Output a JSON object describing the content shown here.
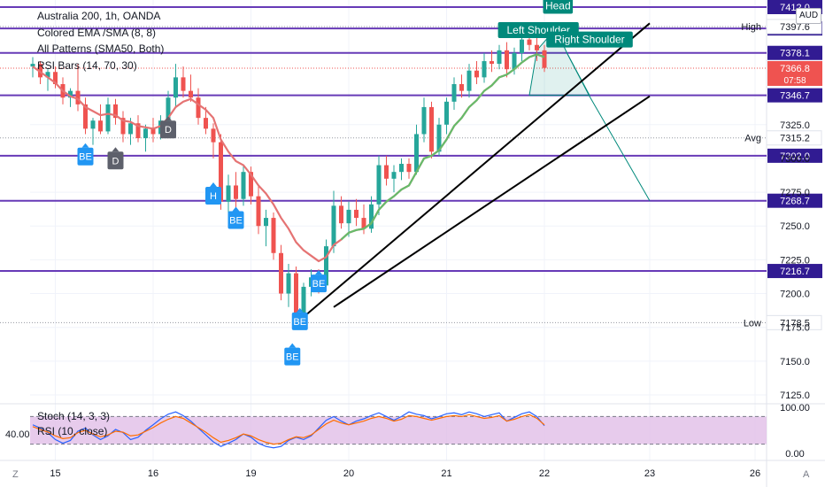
{
  "header": {
    "currency": "AUD"
  },
  "legend": {
    "lines": [
      "Australia 200, 1h, OANDA",
      "Colored EMA /SMA (8, 8)",
      "All Patterns (SMA50, Both)",
      "RSI Bars (14, 70, 30)"
    ]
  },
  "oscillator": {
    "legend": [
      "Stoch (14, 3, 3)",
      "RSI (10, close)"
    ],
    "left_value": "40.00",
    "axis_labels": [
      "100.00",
      "0.00"
    ]
  },
  "footer": {
    "left": "Z",
    "right": "A"
  },
  "colors": {
    "bull": "#26a69a",
    "bear": "#ef5350",
    "ema": "#66bb6a",
    "ema_down": "#e57373",
    "level": "#673ab7",
    "trend": "#000000",
    "pattern": "#00897b",
    "badge_blue": "#2196f3",
    "badge_gray": "#5d606b",
    "rsi_fill": "#e1bee7"
  },
  "chart_data": {
    "type": "candlestick",
    "title": "Australia 200, 1h, OANDA",
    "ylim": [
      7125,
      7412
    ],
    "y_ticks": [
      "7125.0",
      "7150.0",
      "7175.0",
      "7200.0",
      "7225.0",
      "7250.0",
      "7275.0",
      "7300.0",
      "7325.0"
    ],
    "x_ticks": [
      {
        "label": "15",
        "index": 3
      },
      {
        "label": "16",
        "index": 16
      },
      {
        "label": "19",
        "index": 29
      },
      {
        "label": "20",
        "index": 42
      },
      {
        "label": "21",
        "index": 55
      },
      {
        "label": "22",
        "index": 68
      },
      {
        "label": "23",
        "index": 82
      },
      {
        "label": "26",
        "index": 96
      }
    ],
    "candles": [
      [
        7368,
        7375,
        7360,
        7370
      ],
      [
        7370,
        7372,
        7355,
        7360
      ],
      [
        7360,
        7366,
        7350,
        7364
      ],
      [
        7364,
        7368,
        7352,
        7355
      ],
      [
        7355,
        7360,
        7340,
        7345
      ],
      [
        7345,
        7352,
        7338,
        7350
      ],
      [
        7350,
        7370,
        7335,
        7340
      ],
      [
        7340,
        7345,
        7318,
        7322
      ],
      [
        7322,
        7330,
        7310,
        7328
      ],
      [
        7328,
        7340,
        7318,
        7320
      ],
      [
        7320,
        7345,
        7318,
        7340
      ],
      [
        7340,
        7344,
        7325,
        7330
      ],
      [
        7330,
        7335,
        7312,
        7318
      ],
      [
        7318,
        7330,
        7310,
        7326
      ],
      [
        7326,
        7332,
        7312,
        7315
      ],
      [
        7315,
        7325,
        7305,
        7322
      ],
      [
        7322,
        7330,
        7312,
        7318
      ],
      [
        7318,
        7332,
        7314,
        7328
      ],
      [
        7328,
        7350,
        7322,
        7345
      ],
      [
        7345,
        7370,
        7338,
        7360
      ],
      [
        7360,
        7368,
        7345,
        7350
      ],
      [
        7350,
        7362,
        7342,
        7345
      ],
      [
        7345,
        7352,
        7325,
        7330
      ],
      [
        7330,
        7338,
        7318,
        7322
      ],
      [
        7322,
        7326,
        7300,
        7312
      ],
      [
        7312,
        7318,
        7262,
        7268
      ],
      [
        7268,
        7288,
        7255,
        7280
      ],
      [
        7280,
        7290,
        7262,
        7270
      ],
      [
        7270,
        7295,
        7265,
        7290
      ],
      [
        7290,
        7294,
        7266,
        7272
      ],
      [
        7272,
        7280,
        7244,
        7250
      ],
      [
        7250,
        7262,
        7235,
        7256
      ],
      [
        7256,
        7260,
        7225,
        7230
      ],
      [
        7230,
        7236,
        7195,
        7200
      ],
      [
        7200,
        7222,
        7190,
        7215
      ],
      [
        7215,
        7220,
        7180,
        7184
      ],
      [
        7184,
        7208,
        7176,
        7205
      ],
      [
        7205,
        7218,
        7198,
        7212
      ],
      [
        7212,
        7218,
        7200,
        7206
      ],
      [
        7206,
        7240,
        7204,
        7235
      ],
      [
        7235,
        7276,
        7230,
        7265
      ],
      [
        7265,
        7272,
        7248,
        7252
      ],
      [
        7252,
        7268,
        7242,
        7262
      ],
      [
        7262,
        7270,
        7250,
        7256
      ],
      [
        7256,
        7266,
        7244,
        7248
      ],
      [
        7248,
        7272,
        7245,
        7266
      ],
      [
        7266,
        7302,
        7258,
        7295
      ],
      [
        7295,
        7302,
        7280,
        7285
      ],
      [
        7285,
        7295,
        7275,
        7290
      ],
      [
        7290,
        7300,
        7284,
        7296
      ],
      [
        7296,
        7300,
        7285,
        7290
      ],
      [
        7290,
        7325,
        7288,
        7318
      ],
      [
        7318,
        7345,
        7312,
        7338
      ],
      [
        7338,
        7342,
        7300,
        7305
      ],
      [
        7305,
        7330,
        7302,
        7325
      ],
      [
        7325,
        7345,
        7318,
        7342
      ],
      [
        7342,
        7360,
        7336,
        7355
      ],
      [
        7355,
        7362,
        7345,
        7350
      ],
      [
        7350,
        7370,
        7345,
        7365
      ],
      [
        7365,
        7372,
        7355,
        7360
      ],
      [
        7360,
        7378,
        7356,
        7372
      ],
      [
        7372,
        7380,
        7364,
        7370
      ],
      [
        7370,
        7384,
        7366,
        7380
      ],
      [
        7380,
        7386,
        7360,
        7366
      ],
      [
        7366,
        7382,
        7362,
        7378
      ],
      [
        7378,
        7392,
        7372,
        7388
      ],
      [
        7388,
        7397,
        7380,
        7384
      ],
      [
        7384,
        7390,
        7372,
        7380
      ],
      [
        7380,
        7384,
        7364,
        7367
      ]
    ],
    "ema": [
      7368,
      7364,
      7360,
      7356,
      7350,
      7346,
      7344,
      7338,
      7335,
      7332,
      7333,
      7332,
      7328,
      7327,
      7324,
      7323,
      7322,
      7324,
      7330,
      7338,
      7342,
      7344,
      7340,
      7336,
      7330,
      7314,
      7305,
      7298,
      7295,
      7288,
      7280,
      7274,
      7266,
      7256,
      7248,
      7238,
      7232,
      7228,
      7224,
      7227,
      7236,
      7240,
      7245,
      7247,
      7248,
      7252,
      7262,
      7268,
      7272,
      7277,
      7280,
      7290,
      7300,
      7302,
      7306,
      7314,
      7324,
      7330,
      7338,
      7343,
      7350,
      7354,
      7360,
      7362,
      7366,
      7371,
      7375,
      7377,
      7375
    ],
    "levels": [
      {
        "label": "7412.0",
        "value": 7412.0
      },
      {
        "label": "7396.2",
        "value": 7396.2
      },
      {
        "label": "7378.1",
        "value": 7378.1
      },
      {
        "label": "7346.7",
        "value": 7346.7
      },
      {
        "label": "7302.0",
        "value": 7302.0
      },
      {
        "label": "7268.7",
        "value": 7268.7
      },
      {
        "label": "7216.7",
        "value": 7216.7
      }
    ],
    "current": {
      "label": "7366.8",
      "value": 7366.8,
      "countdown": "07:58"
    },
    "stats": [
      {
        "name": "High",
        "label": "7397.6",
        "value": 7397.6
      },
      {
        "name": "Avg",
        "label": "7315.2",
        "value": 7315.2
      },
      {
        "name": "Low",
        "label": "7178.5",
        "value": 7178.5
      }
    ],
    "trendlines": [
      {
        "from": [
          35,
          7178
        ],
        "to": [
          82,
          7400
        ]
      },
      {
        "from": [
          40,
          7190
        ],
        "to": [
          82,
          7346
        ]
      }
    ],
    "pattern": {
      "labels": [
        {
          "text": "Left Shoulder",
          "index": 67.2,
          "value": 7395
        },
        {
          "text": "Head",
          "index": 69.8,
          "value": 7413
        },
        {
          "text": "Right Shoulder",
          "index": 74,
          "value": 7388
        }
      ],
      "projection": [
        [
          71,
          7378
        ],
        [
          74,
          7346
        ],
        [
          82,
          7268.7
        ]
      ]
    },
    "signals": [
      {
        "text": "BE",
        "index": 7,
        "value": 7308,
        "kind": "bull"
      },
      {
        "text": "D",
        "index": 11,
        "value": 7305,
        "kind": "neutral"
      },
      {
        "text": "D",
        "index": 18,
        "value": 7328,
        "kind": "neutral"
      },
      {
        "text": "H",
        "index": 24,
        "value": 7279,
        "kind": "bull"
      },
      {
        "text": "BE",
        "index": 27,
        "value": 7261,
        "kind": "bull"
      },
      {
        "text": "BE",
        "index": 38,
        "value": 7214,
        "kind": "bull"
      },
      {
        "text": "BE",
        "index": 35.5,
        "value": 7186,
        "kind": "bull"
      },
      {
        "text": "BE",
        "index": 34.5,
        "value": 7160,
        "kind": "bull"
      }
    ],
    "stoch": [
      62,
      55,
      45,
      30,
      22,
      28,
      48,
      55,
      40,
      30,
      38,
      52,
      45,
      30,
      35,
      50,
      62,
      75,
      85,
      90,
      82,
      70,
      55,
      40,
      25,
      15,
      22,
      30,
      42,
      35,
      22,
      15,
      12,
      15,
      28,
      35,
      30,
      38,
      55,
      72,
      80,
      70,
      62,
      70,
      75,
      82,
      88,
      80,
      72,
      80,
      90,
      85,
      82,
      75,
      80,
      86,
      88,
      84,
      90,
      86,
      80,
      84,
      88,
      70,
      78,
      86,
      90,
      80,
      60
    ],
    "rsi": [
      58,
      52,
      46,
      38,
      32,
      34,
      45,
      50,
      42,
      36,
      40,
      48,
      46,
      38,
      40,
      48,
      56,
      66,
      74,
      80,
      76,
      66,
      56,
      46,
      34,
      24,
      28,
      34,
      42,
      38,
      30,
      24,
      20,
      22,
      30,
      36,
      34,
      40,
      52,
      64,
      72,
      66,
      62,
      66,
      70,
      76,
      80,
      76,
      70,
      74,
      82,
      80,
      76,
      72,
      76,
      80,
      82,
      80,
      84,
      80,
      76,
      78,
      82,
      70,
      74,
      80,
      84,
      76,
      62
    ]
  }
}
